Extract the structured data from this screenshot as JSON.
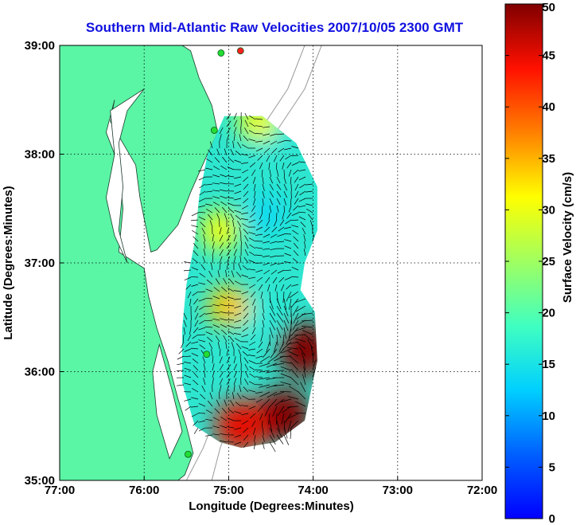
{
  "chart_data": {
    "type": "heatmap",
    "title": "Southern Mid-Atlantic Raw Velocities 2007/10/05 2300 GMT",
    "xlabel": "Longitude (Degrees:Minutes)",
    "ylabel": "Latitude (Degrees:Minutes)",
    "xlim": [
      -77,
      -72
    ],
    "ylim": [
      35,
      39
    ],
    "x_tick_labels": [
      "77:00",
      "76:00",
      "75:00",
      "74:00",
      "73:00",
      "72:00"
    ],
    "y_tick_labels": [
      "35:00",
      "36:00",
      "37:00",
      "38:00",
      "39:00"
    ],
    "grid": "dotted",
    "colorbar": {
      "label": "Surface Velocity (cm/s)",
      "range": [
        0,
        50
      ],
      "tick_labels": [
        "0",
        "5",
        "10",
        "15",
        "20",
        "25",
        "30",
        "35",
        "40",
        "45",
        "50"
      ]
    },
    "colors": {
      "land": "#5af5a5",
      "title": "#1010e0",
      "station": "#22dd33",
      "station_red": "#ff2020"
    },
    "stations": [
      {
        "lon": -74.86,
        "lat": 38.95,
        "color": "red"
      },
      {
        "lon": -75.09,
        "lat": 38.93,
        "color": "green"
      },
      {
        "lon": -75.17,
        "lat": 38.22,
        "color": "green"
      },
      {
        "lon": -75.26,
        "lat": 36.16,
        "color": "green"
      },
      {
        "lon": -75.48,
        "lat": 35.24,
        "color": "green"
      }
    ],
    "velocity_regions": [
      {
        "lon": -74.55,
        "lat": 38.2,
        "speed": 15
      },
      {
        "lon": -74.55,
        "lat": 37.45,
        "speed": 14
      },
      {
        "lon": -74.65,
        "lat": 36.5,
        "speed": 16
      },
      {
        "lon": -75.1,
        "lat": 37.3,
        "speed": 30
      },
      {
        "lon": -75.0,
        "lat": 36.6,
        "speed": 34
      },
      {
        "lon": -74.65,
        "lat": 38.3,
        "speed": 30
      },
      {
        "lon": -74.1,
        "lat": 36.2,
        "speed": 50
      },
      {
        "lon": -74.35,
        "lat": 35.6,
        "speed": 50
      },
      {
        "lon": -74.85,
        "lat": 35.5,
        "speed": 45
      }
    ]
  }
}
